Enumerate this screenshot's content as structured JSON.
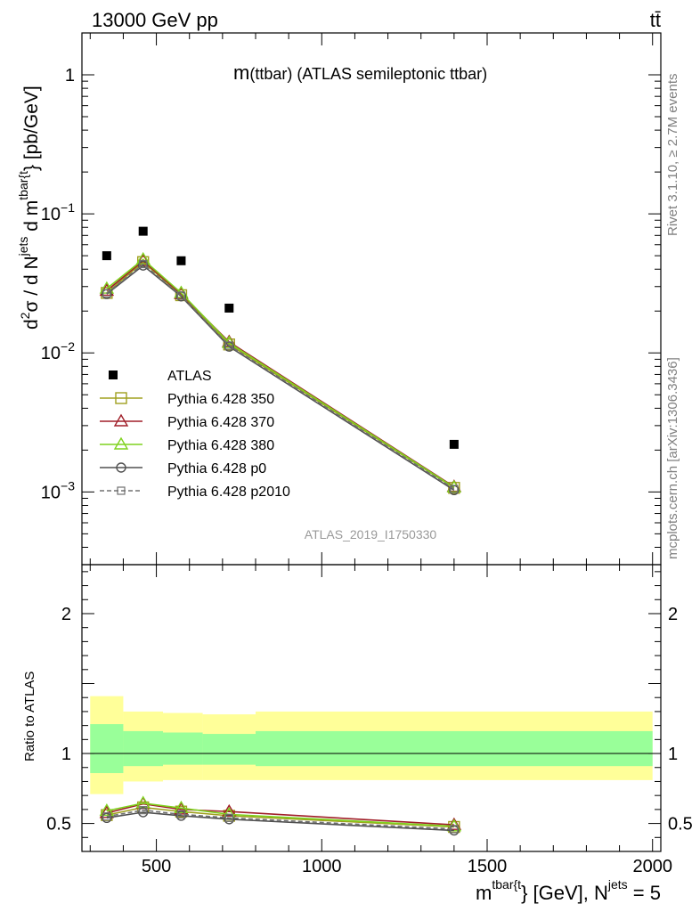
{
  "header": {
    "left": "13000 GeV pp",
    "right": "tt̄"
  },
  "side_text": {
    "rivet": "Rivet 3.1.10, ≥ 2.7M events",
    "mcplots": "mcplots.cern.ch [arXiv:1306.3436]"
  },
  "analysis_id": "ATLAS_2019_I1750330",
  "chart_data": [
    {
      "type": "scatter",
      "title_main": "m",
      "title_paren": "(ttbar)",
      "title_rest": " (ATLAS semileptonic ttbar)",
      "ylabel": "d²σ / d N^jets d m^tbar{t} } [pb/GeV]",
      "ylabel_parts": {
        "a": "d",
        "b": "2",
        "c": "σ / d N",
        "d": "jets",
        "e": " d m",
        "f": "tbar{t",
        "g": "} [pb/GeV]"
      },
      "yscale": "log",
      "ylim": [
        0.0003,
        2.0
      ],
      "yticks": [
        0.001,
        0.01,
        0.1,
        1
      ],
      "ytick_labels": [
        {
          "base": "10",
          "exp": "−3"
        },
        {
          "base": "10",
          "exp": "−2"
        },
        {
          "base": "10",
          "exp": "−1"
        },
        {
          "base": "1",
          "exp": ""
        }
      ],
      "xlim": [
        275,
        2025
      ],
      "x": [
        350,
        460,
        575,
        720,
        1400
      ],
      "legend_position": "lower-left",
      "series": [
        {
          "name": "ATLAS",
          "marker": "filled-square",
          "color": "#000000",
          "values": [
            0.05,
            0.075,
            0.046,
            0.021,
            0.0022
          ]
        },
        {
          "name": "Pythia 6.428 350",
          "marker": "open-square",
          "color": "#a0a01e",
          "dash": "",
          "values": [
            0.027,
            0.045,
            0.026,
            0.0115,
            0.00107
          ]
        },
        {
          "name": "Pythia 6.428 370",
          "marker": "open-triangle",
          "color": "#a01e28",
          "dash": "",
          "values": [
            0.028,
            0.046,
            0.0265,
            0.012,
            0.00109
          ]
        },
        {
          "name": "Pythia 6.428 380",
          "marker": "open-triangle",
          "color": "#7fd21e",
          "dash": "",
          "values": [
            0.029,
            0.047,
            0.027,
            0.0118,
            0.00108
          ]
        },
        {
          "name": "Pythia 6.428 p0",
          "marker": "open-circle",
          "color": "#505050",
          "dash": "",
          "values": [
            0.0265,
            0.0425,
            0.0255,
            0.0111,
            0.00103
          ]
        },
        {
          "name": "Pythia 6.428 p2010",
          "marker": "open-square-small",
          "color": "#707070",
          "dash": "5,3",
          "values": [
            0.0268,
            0.0435,
            0.0258,
            0.0113,
            0.00105
          ]
        }
      ]
    },
    {
      "type": "line",
      "ylabel": "Ratio to ATLAS",
      "ylim": [
        0.3,
        2.35
      ],
      "yticks": [
        0.5,
        1,
        2
      ],
      "ytick_labels": [
        "0.5",
        "1",
        "2"
      ],
      "xlim": [
        275,
        2025
      ],
      "xticks": [
        500,
        1000,
        1500,
        2000
      ],
      "xtick_labels": [
        "500",
        "1000",
        "1500",
        "2000"
      ],
      "xlabel_parts": {
        "a": "m",
        "b": "tbar{t",
        "c": "} [GeV], N",
        "d": "jets",
        "e": " = 5"
      },
      "bands": {
        "edges": [
          300,
          400,
          520,
          640,
          800,
          2000
        ],
        "outer_lo": [
          0.71,
          0.8,
          0.81,
          0.81,
          0.81
        ],
        "outer_hi": [
          1.41,
          1.3,
          1.29,
          1.28,
          1.3
        ],
        "inner_lo": [
          0.86,
          0.91,
          0.92,
          0.92,
          0.91
        ],
        "inner_hi": [
          1.21,
          1.16,
          1.15,
          1.14,
          1.16
        ],
        "outer_color": "#ffff99",
        "inner_color": "#99ff99"
      },
      "x": [
        350,
        460,
        575,
        720,
        1400
      ],
      "series": [
        {
          "name": "Pythia 6.428 350",
          "values": [
            0.56,
            0.615,
            0.585,
            0.555,
            0.475
          ]
        },
        {
          "name": "Pythia 6.428 370",
          "values": [
            0.575,
            0.64,
            0.6,
            0.585,
            0.49
          ]
        },
        {
          "name": "Pythia 6.428 380",
          "values": [
            0.59,
            0.645,
            0.61,
            0.565,
            0.48
          ]
        },
        {
          "name": "Pythia 6.428 p0",
          "values": [
            0.54,
            0.58,
            0.555,
            0.53,
            0.45
          ]
        },
        {
          "name": "Pythia 6.428 p2010",
          "values": [
            0.55,
            0.595,
            0.565,
            0.54,
            0.46
          ]
        }
      ]
    }
  ]
}
